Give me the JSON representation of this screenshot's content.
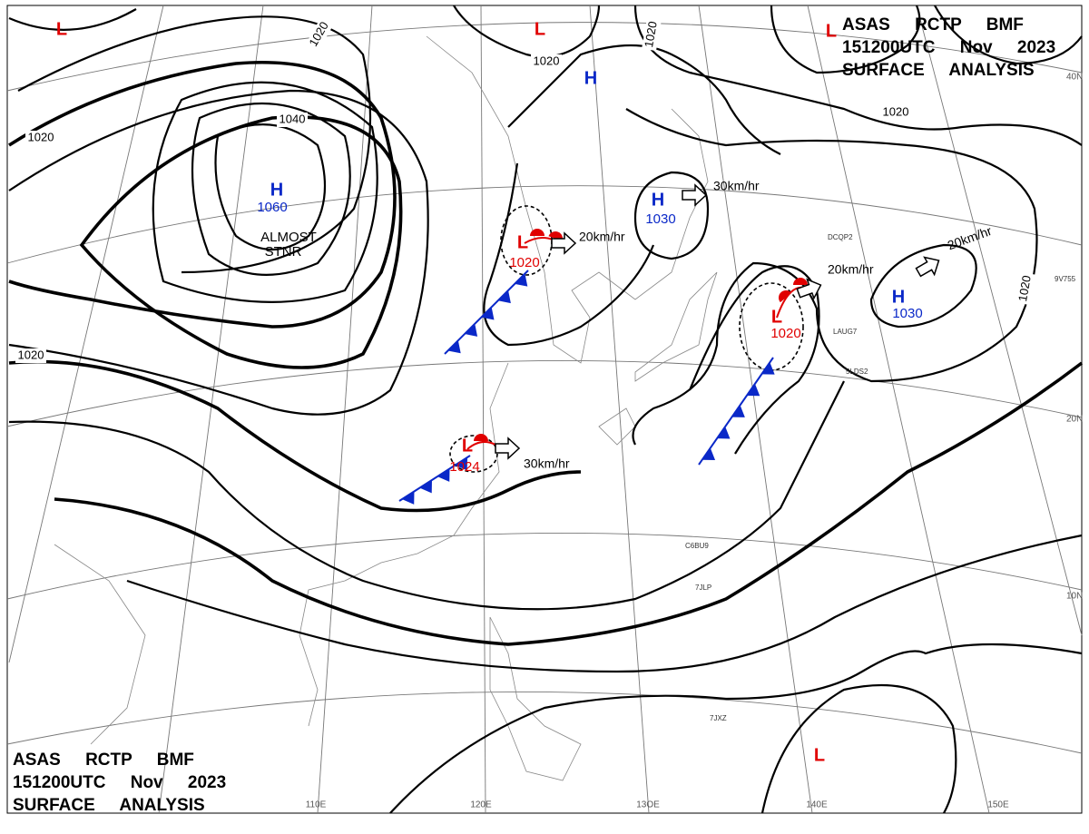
{
  "header": {
    "lines": [
      "ASAS RCTP BMF",
      "151200UTC Nov 2023",
      "SURFACE ANALYSIS"
    ]
  },
  "pressure_centers": [
    {
      "symbol": "H",
      "value": "1060"
    },
    {
      "symbol": "L"
    },
    {
      "symbol": "L"
    },
    {
      "symbol": "H"
    },
    {
      "symbol": "H",
      "value": "1030"
    },
    {
      "symbol": "L",
      "value": "1020"
    },
    {
      "symbol": "L",
      "value": "1020"
    },
    {
      "symbol": "H",
      "value": "1030"
    },
    {
      "symbol": "L",
      "value": "1024"
    },
    {
      "symbol": "L"
    },
    {
      "symbol": "L"
    }
  ],
  "isobar_labels": [
    "1020",
    "1020",
    "1020",
    "1020",
    "1020",
    "1020",
    "1020",
    "1040"
  ],
  "motion_labels": [
    "30km/hr",
    "20km/hr",
    "20km/hr",
    "20km/hr",
    "30km/hr"
  ],
  "annotation": [
    "ALMOST",
    "STNR"
  ],
  "latitude_labels": [
    "40N",
    "20N",
    "10N"
  ],
  "longitude_labels": [
    "110E",
    "120E",
    "13OE",
    "140E",
    "150E"
  ],
  "station_codes": [
    "7JLP",
    "C6BU9",
    "7JXZ",
    "LAUG7",
    "5LDS2",
    "DCQP2",
    "9V755"
  ]
}
